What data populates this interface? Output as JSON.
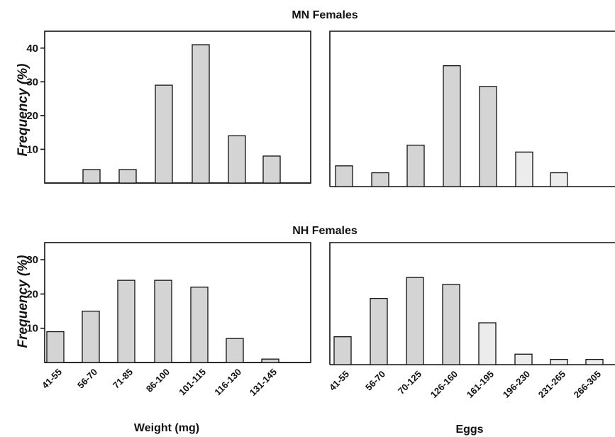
{
  "header": {
    "top_title": "MN Females",
    "bottom_title": "NH Females",
    "ylabel": "Frequency (%)",
    "xlabel_left": "Weight (mg)",
    "xlabel_right": "Eggs"
  },
  "colors": {
    "bar_fill": "#d4d4d4",
    "bar_fill_light": "#ececec",
    "axis": "#111111"
  },
  "chart_data": [
    {
      "type": "bar",
      "group": "MN Females",
      "xlabel": "",
      "ylabel": "Frequency (%)",
      "categories": [
        "41-55",
        "56-70",
        "71-85",
        "86-100",
        "101-115",
        "116-130",
        "131-145"
      ],
      "values": [
        0,
        4,
        4,
        29,
        41,
        14,
        8
      ],
      "yticks": [
        10,
        20,
        30,
        40
      ],
      "ylim": [
        0,
        45
      ],
      "grid": false
    },
    {
      "type": "bar",
      "group": "MN Females",
      "xlabel": "",
      "ylabel": "",
      "categories": [
        "41-55",
        "56-70",
        "70-125",
        "126-160",
        "161-195",
        "196-230",
        "231-265",
        "266-305"
      ],
      "values": [
        6,
        4,
        12,
        35,
        29,
        10,
        4,
        0
      ],
      "yticks": [],
      "ylim": [
        0,
        45
      ],
      "grid": false
    },
    {
      "type": "bar",
      "group": "NH Females",
      "xlabel": "Weight (mg)",
      "ylabel": "Frequency (%)",
      "categories": [
        "41-55",
        "56-70",
        "71-85",
        "86-100",
        "101-115",
        "116-130",
        "131-145"
      ],
      "values": [
        9,
        15,
        24,
        24,
        22,
        7,
        1
      ],
      "yticks": [
        10,
        20,
        30
      ],
      "ylim": [
        0,
        35
      ],
      "grid": false
    },
    {
      "type": "bar",
      "group": "NH Females",
      "xlabel": "Eggs",
      "ylabel": "",
      "categories": [
        "41-55",
        "56-70",
        "70-125",
        "126-160",
        "161-195",
        "196-230",
        "231-265",
        "266-305"
      ],
      "values": [
        8,
        19,
        25,
        23,
        12,
        3,
        1.5,
        1.5
      ],
      "yticks": [],
      "ylim": [
        0,
        35
      ],
      "grid": false
    }
  ]
}
